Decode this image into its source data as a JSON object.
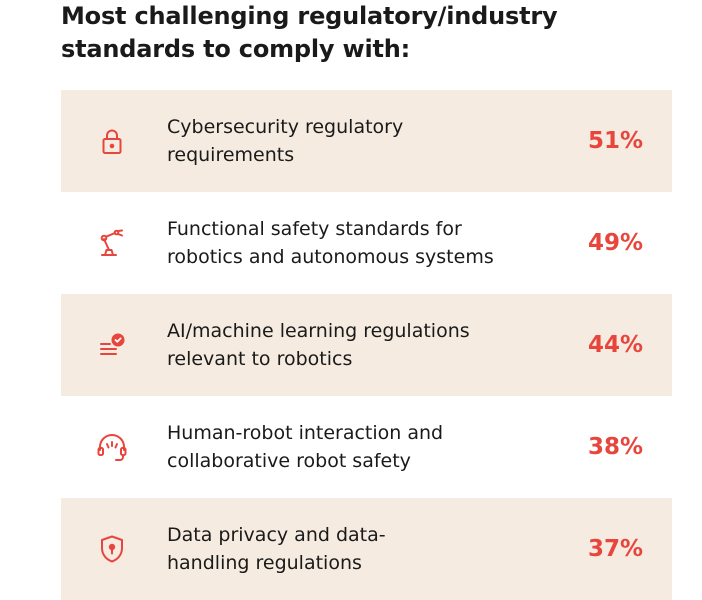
{
  "title_lines": [
    "Most challenging regulatory/industry",
    "standards to comply with:"
  ],
  "colors": {
    "accent": "#e8463c",
    "shaded_row": "#f5ebe0",
    "text": "#1a1a1a"
  },
  "items": [
    {
      "icon": "lock-icon",
      "lines": [
        "Cybersecurity regulatory",
        "requirements"
      ],
      "value": "51%",
      "shaded": true
    },
    {
      "icon": "robot-arm-icon",
      "lines": [
        "Functional safety standards for",
        "robotics and autonomous systems"
      ],
      "value": "49%",
      "shaded": false
    },
    {
      "icon": "list-check-icon",
      "lines": [
        "AI/machine learning regulations",
        "relevant to robotics"
      ],
      "value": "44%",
      "shaded": true
    },
    {
      "icon": "headset-icon",
      "lines": [
        "Human-robot interaction and",
        "collaborative robot safety"
      ],
      "value": "38%",
      "shaded": false
    },
    {
      "icon": "shield-keyhole-icon",
      "lines": [
        "Data privacy and data-",
        "handling regulations"
      ],
      "value": "37%",
      "shaded": true
    }
  ],
  "chart_data": {
    "type": "table",
    "title": "Most challenging regulatory/industry standards to comply with:",
    "categories": [
      "Cybersecurity regulatory requirements",
      "Functional safety standards for robotics and autonomous systems",
      "AI/machine learning regulations relevant to robotics",
      "Human-robot interaction and collaborative robot safety",
      "Data privacy and data-handling regulations"
    ],
    "values": [
      51,
      49,
      44,
      38,
      37
    ]
  }
}
